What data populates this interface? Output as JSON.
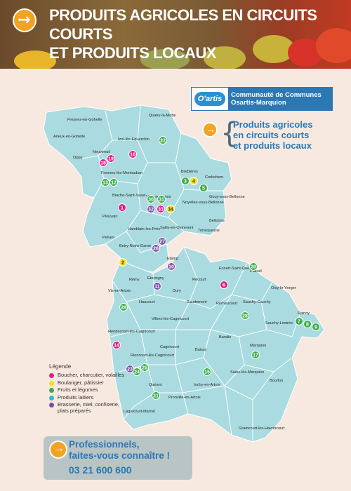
{
  "banner": {
    "title_line1": "Produits agricoles en circuits courts",
    "title_line2": "et produits locaux"
  },
  "logo": {
    "mark": "O'artis",
    "line1": "Communauté de Communes",
    "line2": "Osartis-Marquion"
  },
  "side_title": {
    "line1": "Produits agricoles",
    "line2": "en circuits courts",
    "line3": "et produits locaux"
  },
  "legend": {
    "heading": "Légende",
    "items": [
      {
        "label": "Boucher, charcutier, volailles",
        "color": "#e21d8a"
      },
      {
        "label": "Boulanger, pâtissier",
        "color": "#f2e21a"
      },
      {
        "label": "Fruits et légumes",
        "color": "#3aae4a"
      },
      {
        "label": "Produits laitiers",
        "color": "#2fb8d4"
      },
      {
        "label": "Brasserie, miel, confiserie, plats préparés",
        "color": "#7a4fa8"
      }
    ]
  },
  "bottom": {
    "line1": "Professionnels,",
    "line2": "faites-vous connaître !",
    "phone": "03 21 600 600"
  },
  "towns": [
    {
      "name": "Fresnes-en-Gohelle"
    },
    {
      "name": "Quiéry-la-Motte"
    },
    {
      "name": "Arleux-en-Gohelle"
    },
    {
      "name": "Izel-lès-Equerchin"
    },
    {
      "name": "Oppy"
    },
    {
      "name": "Neuvireuil"
    },
    {
      "name": "Fresnes-lès-Montauban"
    },
    {
      "name": "Brebières"
    },
    {
      "name": "Corbehem"
    },
    {
      "name": "Gouy-sous-Bellonne"
    },
    {
      "name": "Bellonne"
    },
    {
      "name": "Biache-Saint-Vaast"
    },
    {
      "name": "Vitry-en-Artois"
    },
    {
      "name": "Noyelles-sous-Bellonne"
    },
    {
      "name": "Plouvain"
    },
    {
      "name": "Tortequesne"
    },
    {
      "name": "Hamblain-les-Prés"
    },
    {
      "name": "Sailly-en-Ostrevent"
    },
    {
      "name": "Pelves"
    },
    {
      "name": "Boiry-Notre-Dame"
    },
    {
      "name": "Etaing"
    },
    {
      "name": "Ecourt-Saint-Quentin"
    },
    {
      "name": "Palluel"
    },
    {
      "name": "Rémy"
    },
    {
      "name": "Eterpigny"
    },
    {
      "name": "Récourt"
    },
    {
      "name": "Oisy-le-Verger"
    },
    {
      "name": "Dury"
    },
    {
      "name": "Vis-en-Artois"
    },
    {
      "name": "Haucourt"
    },
    {
      "name": "Saudemont"
    },
    {
      "name": "Rumaucourt"
    },
    {
      "name": "Sauchy-Cauchy"
    },
    {
      "name": "Villers-lès-Cagnicourt"
    },
    {
      "name": "Sauchy-Lestrée"
    },
    {
      "name": "Epinoy"
    },
    {
      "name": "Hendecourt-lès-Cagnicourt"
    },
    {
      "name": "Baralle"
    },
    {
      "name": "Buissy"
    },
    {
      "name": "Cagnicourt"
    },
    {
      "name": "Marquion"
    },
    {
      "name": "Riencourt-lès-Cagnicourt"
    },
    {
      "name": "Sains-lès-Marquion"
    },
    {
      "name": "Inchy-en-Artois"
    },
    {
      "name": "Bourlon"
    },
    {
      "name": "Quéant"
    },
    {
      "name": "Pronville-en-Artois"
    },
    {
      "name": "Lagnicourt-Marcel"
    },
    {
      "name": "Graincourt-lès-Havrincourt"
    }
  ],
  "markers": [
    {
      "num": "18",
      "color": "#e21d8a"
    },
    {
      "num": "19",
      "color": "#e21d8a"
    },
    {
      "num": "16",
      "color": "#e21d8a"
    },
    {
      "num": "22",
      "color": "#3aae4a"
    },
    {
      "num": "13",
      "color": "#3aae4a"
    },
    {
      "num": "12",
      "color": "#3aae4a"
    },
    {
      "num": "3",
      "color": "#3aae4a"
    },
    {
      "num": "4",
      "color": "#f2e21a"
    },
    {
      "num": "5",
      "color": "#3aae4a"
    },
    {
      "num": "1",
      "color": "#e21d8a"
    },
    {
      "num": "30",
      "color": "#3aae4a"
    },
    {
      "num": "31",
      "color": "#3aae4a"
    },
    {
      "num": "32",
      "color": "#7a4fa8"
    },
    {
      "num": "33",
      "color": "#e21d8a"
    },
    {
      "num": "34",
      "color": "#f2e21a"
    },
    {
      "num": "27",
      "color": "#7a4fa8"
    },
    {
      "num": "2",
      "color": "#f2e21a"
    },
    {
      "num": "26",
      "color": "#7a4fa8"
    },
    {
      "num": "10",
      "color": "#7a4fa8"
    },
    {
      "num": "20",
      "color": "#3aae4a"
    },
    {
      "num": "6",
      "color": "#e21d8a"
    },
    {
      "num": "11",
      "color": "#7a4fa8"
    },
    {
      "num": "29",
      "color": "#3aae4a"
    },
    {
      "num": "28",
      "color": "#3aae4a"
    },
    {
      "num": "7",
      "color": "#3aae4a"
    },
    {
      "num": "8",
      "color": "#3aae4a"
    },
    {
      "num": "9",
      "color": "#3aae4a"
    },
    {
      "num": "14",
      "color": "#e21d8a"
    },
    {
      "num": "17",
      "color": "#3aae4a"
    },
    {
      "num": "25",
      "color": "#3aae4a"
    },
    {
      "num": "24",
      "color": "#3aae4a"
    },
    {
      "num": "23",
      "color": "#7a4fa8"
    },
    {
      "num": "15",
      "color": "#3aae4a"
    },
    {
      "num": "21",
      "color": "#3aae4a"
    }
  ]
}
